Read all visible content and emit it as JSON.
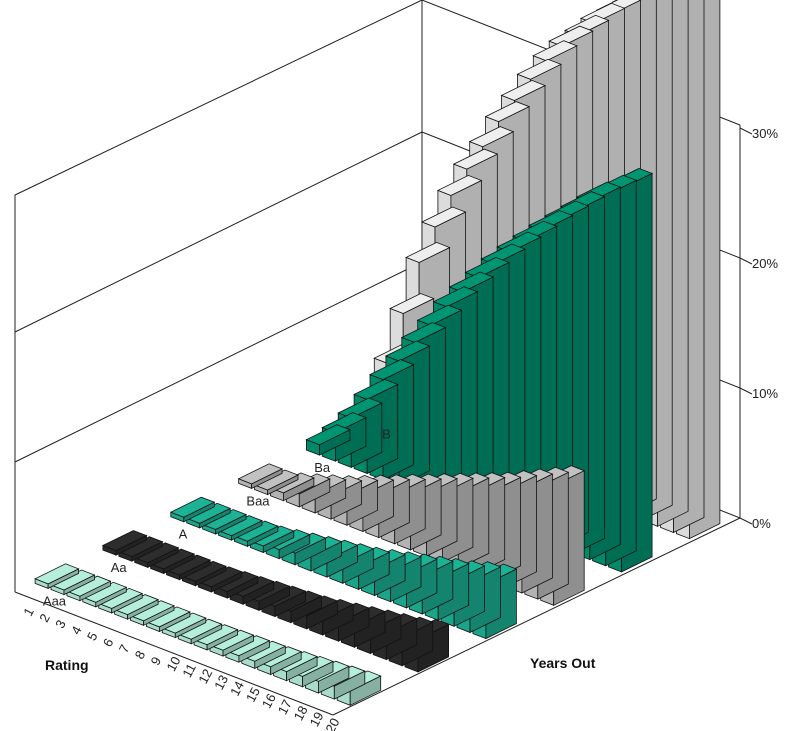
{
  "chart_data": {
    "type": "bar",
    "subtype": "3d-bar",
    "title": "",
    "xlabel": "Years Out",
    "ylabel": "Rating",
    "zlim": [
      0,
      30
    ],
    "z_ticks": [
      "0%",
      "10%",
      "20%",
      "30%"
    ],
    "grid": true,
    "categories": [
      "1",
      "2",
      "3",
      "4",
      "5",
      "6",
      "7",
      "8",
      "9",
      "10",
      "11",
      "12",
      "13",
      "14",
      "15",
      "16",
      "17",
      "18",
      "19",
      "20"
    ],
    "series": [
      {
        "name": "B",
        "color": "#dcdcdc",
        "values": [
          4.5,
          8.8,
          13.2,
          16.4,
          19.3,
          21.8,
          24.0,
          26.4,
          28.5,
          30.6,
          32.5,
          34.1,
          35.4,
          36.8,
          37.9,
          39.0,
          39.9,
          40.8,
          41.5,
          42.2
        ]
      },
      {
        "name": "Ba",
        "color": "#008a6a",
        "values": [
          0.8,
          2.2,
          3.8,
          5.7,
          7.7,
          9.6,
          11.5,
          13.3,
          15.2,
          16.8,
          18.4,
          19.9,
          21.3,
          22.6,
          23.9,
          25.1,
          26.3,
          27.5,
          28.5,
          29.5
        ]
      },
      {
        "name": "Baa",
        "color": "#b3b3b3",
        "values": [
          0.1,
          0.3,
          0.6,
          1.0,
          1.4,
          1.8,
          2.3,
          2.8,
          3.3,
          3.8,
          4.3,
          4.8,
          5.3,
          5.8,
          6.3,
          6.8,
          7.4,
          8.0,
          8.6,
          9.2
        ]
      },
      {
        "name": "A",
        "color": "#1aa58a",
        "values": [
          0.05,
          0.1,
          0.2,
          0.3,
          0.4,
          0.5,
          0.7,
          0.9,
          1.1,
          1.3,
          1.5,
          1.7,
          2.0,
          2.3,
          2.6,
          2.9,
          3.2,
          3.5,
          3.9,
          4.2
        ]
      },
      {
        "name": "Aa",
        "color": "#2a2a2a",
        "values": [
          0.0,
          0.05,
          0.1,
          0.15,
          0.2,
          0.3,
          0.4,
          0.5,
          0.6,
          0.7,
          0.8,
          0.9,
          1.0,
          1.2,
          1.4,
          1.6,
          1.8,
          2.0,
          2.2,
          2.5
        ]
      },
      {
        "name": "Aaa",
        "color": "#a8dccb",
        "values": [
          0.0,
          0.02,
          0.05,
          0.08,
          0.12,
          0.16,
          0.2,
          0.25,
          0.3,
          0.35,
          0.4,
          0.45,
          0.5,
          0.55,
          0.6,
          0.7,
          0.8,
          0.9,
          1.0,
          1.1
        ]
      }
    ]
  }
}
